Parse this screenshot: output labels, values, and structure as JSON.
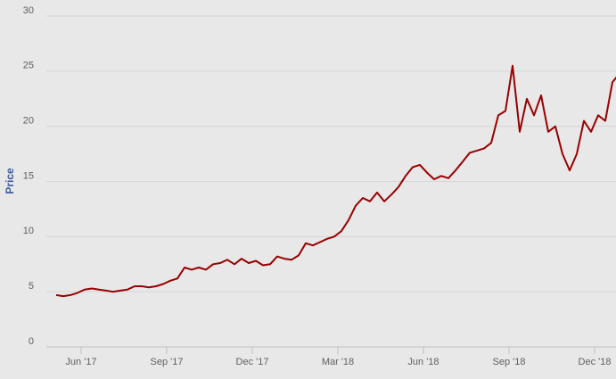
{
  "chart_data": {
    "type": "line",
    "y_label": "Price",
    "x": [
      "2017-05",
      "2017-05",
      "2017-05",
      "2017-05",
      "2017-06",
      "2017-06",
      "2017-06",
      "2017-06",
      "2017-07",
      "2017-07",
      "2017-07",
      "2017-07",
      "2017-08",
      "2017-08",
      "2017-08",
      "2017-08",
      "2017-09",
      "2017-09",
      "2017-09",
      "2017-09",
      "2017-10",
      "2017-10",
      "2017-10",
      "2017-10",
      "2017-11",
      "2017-11",
      "2017-11",
      "2017-11",
      "2017-12",
      "2017-12",
      "2017-12",
      "2017-12",
      "2018-01",
      "2018-01",
      "2018-01",
      "2018-01",
      "2018-02",
      "2018-02",
      "2018-02",
      "2018-02",
      "2018-03",
      "2018-03",
      "2018-03",
      "2018-03",
      "2018-04",
      "2018-04",
      "2018-04",
      "2018-04",
      "2018-05",
      "2018-05",
      "2018-05",
      "2018-05",
      "2018-06",
      "2018-06",
      "2018-06",
      "2018-06",
      "2018-07",
      "2018-07",
      "2018-07",
      "2018-07",
      "2018-08",
      "2018-08",
      "2018-08",
      "2018-08",
      "2018-09",
      "2018-09",
      "2018-09",
      "2018-09",
      "2018-10",
      "2018-10",
      "2018-10",
      "2018-10",
      "2018-11",
      "2018-11",
      "2018-11",
      "2018-11",
      "2018-12",
      "2018-12",
      "2018-12",
      "2018-12"
    ],
    "series": [
      {
        "name": "Price",
        "color": "#990000",
        "values": [
          4.7,
          4.6,
          4.7,
          4.9,
          5.2,
          5.3,
          5.2,
          5.1,
          5.0,
          5.1,
          5.2,
          5.5,
          5.5,
          5.4,
          5.5,
          5.7,
          6.0,
          6.2,
          7.2,
          7.0,
          7.2,
          7.0,
          7.5,
          7.6,
          7.9,
          7.5,
          8.0,
          7.6,
          7.8,
          7.4,
          7.5,
          8.2,
          8.0,
          7.9,
          8.3,
          9.4,
          9.2,
          9.5,
          9.8,
          10.0,
          10.5,
          11.5,
          12.8,
          13.5,
          13.2,
          14.0,
          13.2,
          13.8,
          14.5,
          15.5,
          16.3,
          16.5,
          15.8,
          15.2,
          15.5,
          15.3,
          16.0,
          16.8,
          17.6,
          17.8,
          18.0,
          18.5,
          21.0,
          21.4,
          25.5,
          19.5,
          22.5,
          21.0,
          22.8,
          19.5,
          20.0,
          17.5,
          16.0,
          17.5,
          20.5,
          19.5,
          21.0,
          20.5,
          24.0,
          24.8
        ]
      }
    ],
    "xticks": [
      {
        "value": "2017-06",
        "label": "Jun '17"
      },
      {
        "value": "2017-09",
        "label": "Sep '17"
      },
      {
        "value": "2017-12",
        "label": "Dec '17"
      },
      {
        "value": "2018-03",
        "label": "Mar '18"
      },
      {
        "value": "2018-06",
        "label": "Jun '18"
      },
      {
        "value": "2018-09",
        "label": "Sep '18"
      },
      {
        "value": "2018-12",
        "label": "Dec '18"
      }
    ],
    "ylim": [
      0,
      30
    ],
    "yticks": [
      0,
      5,
      10,
      15,
      20,
      25,
      30
    ],
    "grid": true
  }
}
